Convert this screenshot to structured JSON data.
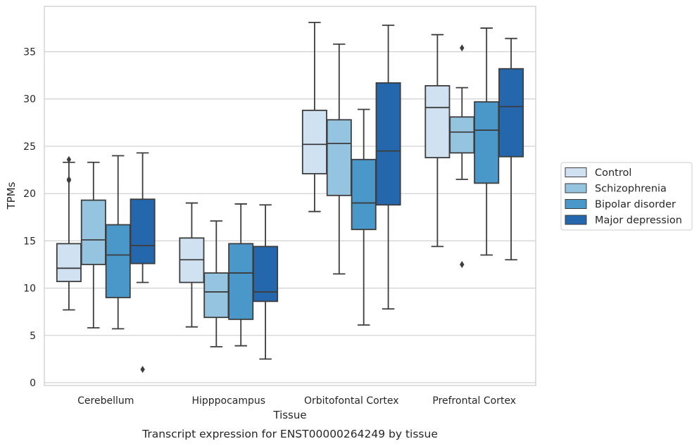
{
  "chart_data": {
    "type": "boxplot",
    "caption": "Transcript expression for ENST00000264249 by tissue",
    "xlabel": "Tissue",
    "ylabel": "TPMs",
    "ylim": [
      -0.3,
      39.8
    ],
    "yticks": [
      0,
      5,
      10,
      15,
      20,
      25,
      30,
      35
    ],
    "grid": "horizontal",
    "legend_position": "right",
    "categories": [
      "Cerebellum",
      "Hipppocampus",
      "Orbitofontal Cortex",
      "Prefrontal Cortex"
    ],
    "series": [
      {
        "name": "Control",
        "color": "#d0e1f2",
        "boxes": [
          {
            "whislo": 7.7,
            "q1": 10.7,
            "med": 12.1,
            "q3": 14.7,
            "whishi": 23.3,
            "fliers": [
              23.6,
              21.5,
              21.4
            ]
          },
          {
            "whislo": 5.9,
            "q1": 10.6,
            "med": 13.0,
            "q3": 15.3,
            "whishi": 19.0,
            "fliers": []
          },
          {
            "whislo": 18.1,
            "q1": 22.1,
            "med": 25.2,
            "q3": 28.8,
            "whishi": 38.1,
            "fliers": []
          },
          {
            "whislo": 14.4,
            "q1": 23.8,
            "med": 29.1,
            "q3": 31.4,
            "whishi": 36.8,
            "fliers": []
          }
        ]
      },
      {
        "name": "Schizophrenia",
        "color": "#94c4df",
        "boxes": [
          {
            "whislo": 5.8,
            "q1": 12.5,
            "med": 15.1,
            "q3": 19.3,
            "whishi": 23.3,
            "fliers": []
          },
          {
            "whislo": 3.8,
            "q1": 6.9,
            "med": 9.6,
            "q3": 11.6,
            "whishi": 17.1,
            "fliers": []
          },
          {
            "whislo": 11.5,
            "q1": 19.8,
            "med": 25.3,
            "q3": 27.8,
            "whishi": 35.8,
            "fliers": []
          },
          {
            "whislo": 21.5,
            "q1": 24.3,
            "med": 26.5,
            "q3": 28.1,
            "whishi": 31.2,
            "fliers": [
              35.4,
              12.5
            ]
          }
        ]
      },
      {
        "name": "Bipolar disorder",
        "color": "#4a98c9",
        "boxes": [
          {
            "whislo": 5.7,
            "q1": 9.0,
            "med": 13.5,
            "q3": 16.7,
            "whishi": 24.0,
            "fliers": []
          },
          {
            "whislo": 3.9,
            "q1": 6.7,
            "med": 11.6,
            "q3": 14.7,
            "whishi": 18.9,
            "fliers": []
          },
          {
            "whislo": 6.1,
            "q1": 16.2,
            "med": 19.0,
            "q3": 23.6,
            "whishi": 28.9,
            "fliers": []
          },
          {
            "whislo": 13.5,
            "q1": 21.1,
            "med": 26.7,
            "q3": 29.7,
            "whishi": 37.5,
            "fliers": []
          }
        ]
      },
      {
        "name": "Major depression",
        "color": "#2467ad",
        "boxes": [
          {
            "whislo": 10.6,
            "q1": 12.6,
            "med": 14.5,
            "q3": 19.4,
            "whishi": 24.3,
            "fliers": [
              1.4
            ]
          },
          {
            "whislo": 2.5,
            "q1": 8.6,
            "med": 9.6,
            "q3": 14.4,
            "whishi": 18.8,
            "fliers": []
          },
          {
            "whislo": 7.8,
            "q1": 18.8,
            "med": 24.5,
            "q3": 31.7,
            "whishi": 37.8,
            "fliers": []
          },
          {
            "whislo": 13.0,
            "q1": 23.9,
            "med": 29.2,
            "q3": 33.2,
            "whishi": 36.4,
            "fliers": []
          }
        ]
      }
    ]
  }
}
